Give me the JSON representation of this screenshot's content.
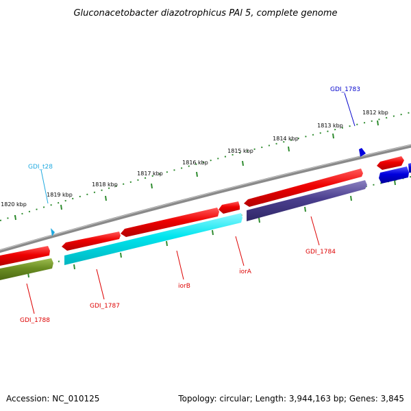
{
  "title": "Gluconacetobacter diazotrophicus PAl 5, complete genome",
  "footer": {
    "accession": "Accession: NC_010125",
    "summary": "Topology: circular; Length: 3,944,163 bp; Genes: 3,845"
  },
  "colors": {
    "backbone": "#777777",
    "scale": "#2e8b2e",
    "forward_cds": "#ee0000",
    "reverse_cds": "#ee0000",
    "gene_cyan": "#00e5ee",
    "gene_slate": "#4b3f8f",
    "gene_olive": "#6b8e23",
    "gene_blue": "#0000dd",
    "trna": "#1ea9e0",
    "label_red": "#dd0000",
    "label_cyan": "#1ea9e0",
    "label_blue": "#0000cc"
  },
  "scale_ticks": [
    {
      "label": "1812 kbp"
    },
    {
      "label": "1813 kbp"
    },
    {
      "label": "1814 kbp"
    },
    {
      "label": "1815 kbp"
    },
    {
      "label": "1816 kbp"
    },
    {
      "label": "1817 kbp"
    },
    {
      "label": "1818 kbp"
    },
    {
      "label": "1819 kbp"
    },
    {
      "label": "1820 kbp"
    }
  ],
  "genes": [
    {
      "name": "GDI_1783",
      "feature": "gene",
      "strand": "forward"
    },
    {
      "name": "GDI_t28",
      "feature": "tRNA",
      "strand": "forward"
    },
    {
      "name": "GDI_1784",
      "feature": "gene",
      "strand": "reverse"
    },
    {
      "name": "iorA",
      "feature": "gene",
      "strand": "reverse"
    },
    {
      "name": "iorB",
      "feature": "gene",
      "strand": "reverse"
    },
    {
      "name": "GDI_1787",
      "feature": "gene",
      "strand": "reverse"
    },
    {
      "name": "GDI_1788",
      "feature": "gene",
      "strand": "reverse"
    }
  ]
}
